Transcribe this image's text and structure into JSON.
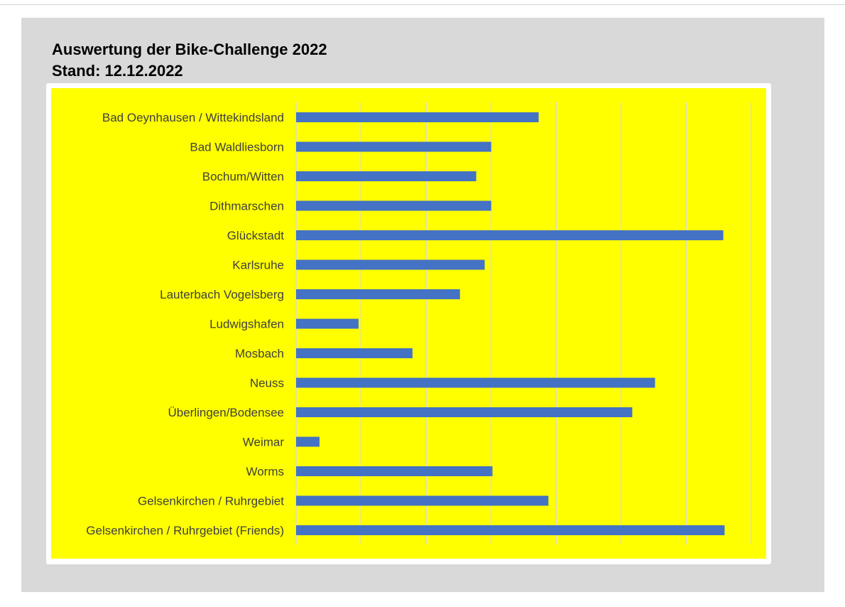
{
  "header": {
    "title": "Auswertung der Bike-Challenge 2022",
    "subtitle": "Stand: 12.12.2022"
  },
  "colors": {
    "panel": "#d9d9d9",
    "plot_area": "#ffff00",
    "bar": "#4472c4",
    "gridline": "#d9d9d9",
    "label": "#404040"
  },
  "chart_data": {
    "type": "bar",
    "orientation": "horizontal",
    "categories": [
      "Bad Oeynhausen / Wittekindsland",
      "Bad Waldliesborn",
      "Bochum/Witten",
      "Dithmarschen",
      "Glückstadt",
      "Karlsruhe",
      "Lauterbach Vogelsberg",
      "Ludwigshafen",
      "Mosbach",
      "Neuss",
      "Überlingen/Bodensee",
      "Weimar",
      "Worms",
      "Gelsenkirchen / Ruhrgebiet",
      "Gelsenkirchen / Ruhrgebiet (Friends)"
    ],
    "values": [
      3.73,
      3.0,
      2.77,
      3.0,
      6.57,
      2.9,
      2.52,
      0.96,
      1.79,
      5.52,
      5.17,
      0.36,
      3.02,
      3.88,
      6.59
    ],
    "xlim": [
      0,
      7
    ],
    "grid": true,
    "legend": false
  }
}
